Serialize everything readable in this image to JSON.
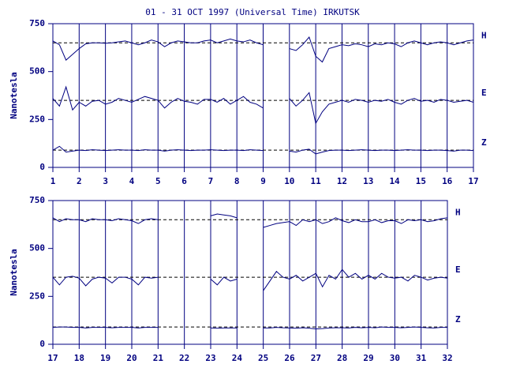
{
  "chart_data": [
    {
      "type": "line",
      "title": "01 - 31 OCT 1997 (Universal Time) IRKUTSK",
      "ylabel": "Nanotesla",
      "x": [
        1,
        1.25,
        1.5,
        1.75,
        2,
        2.25,
        2.5,
        2.75,
        3,
        3.25,
        3.5,
        3.75,
        4,
        4.25,
        4.5,
        4.75,
        5,
        5.25,
        5.5,
        5.75,
        6,
        6.25,
        6.5,
        6.75,
        7,
        7.25,
        7.5,
        7.75,
        8,
        8.25,
        8.5,
        8.75,
        9,
        9.25,
        9.5,
        9.75,
        10,
        10.25,
        10.5,
        10.75,
        11,
        11.25,
        11.5,
        11.75,
        12,
        12.25,
        12.5,
        12.75,
        13,
        13.25,
        13.5,
        13.75,
        14,
        14.25,
        14.5,
        14.75,
        15,
        15.25,
        15.5,
        15.75,
        16,
        16.25,
        16.5,
        16.75,
        17
      ],
      "xlim": [
        1,
        17
      ],
      "xticks": [
        1,
        2,
        3,
        4,
        5,
        6,
        7,
        8,
        9,
        10,
        11,
        12,
        13,
        14,
        15,
        16,
        17
      ],
      "ylim": [
        0,
        750
      ],
      "yticks": [
        0,
        250,
        500,
        750
      ],
      "grid": true,
      "series": [
        {
          "name": "H",
          "color": "#000080",
          "baseline": 650,
          "values": [
            660,
            640,
            560,
            590,
            620,
            645,
            650,
            650,
            648,
            650,
            655,
            660,
            650,
            640,
            650,
            665,
            655,
            630,
            650,
            660,
            655,
            650,
            650,
            660,
            665,
            650,
            660,
            670,
            660,
            655,
            665,
            650,
            640,
            null,
            null,
            null,
            620,
            610,
            640,
            680,
            580,
            550,
            620,
            630,
            640,
            635,
            645,
            640,
            630,
            645,
            640,
            650,
            645,
            630,
            650,
            660,
            650,
            640,
            650,
            655,
            650,
            640,
            650,
            660,
            665
          ]
        },
        {
          "name": "E",
          "color": "#000080",
          "baseline": 350,
          "values": [
            360,
            320,
            420,
            300,
            340,
            320,
            345,
            350,
            330,
            340,
            360,
            350,
            340,
            355,
            370,
            360,
            350,
            310,
            340,
            360,
            345,
            340,
            330,
            355,
            355,
            340,
            360,
            330,
            350,
            370,
            340,
            330,
            310,
            null,
            null,
            null,
            360,
            320,
            350,
            390,
            230,
            290,
            330,
            340,
            350,
            340,
            355,
            350,
            340,
            350,
            345,
            355,
            340,
            330,
            350,
            360,
            345,
            350,
            340,
            355,
            350,
            340,
            345,
            350,
            340
          ]
        },
        {
          "name": "Z",
          "color": "#000080",
          "baseline": 90,
          "values": [
            90,
            110,
            80,
            85,
            90,
            88,
            92,
            90,
            88,
            90,
            92,
            90,
            90,
            88,
            92,
            90,
            90,
            85,
            90,
            92,
            90,
            88,
            90,
            90,
            92,
            90,
            88,
            90,
            90,
            88,
            92,
            90,
            88,
            null,
            null,
            null,
            85,
            80,
            90,
            95,
            70,
            80,
            88,
            90,
            90,
            88,
            90,
            92,
            90,
            88,
            90,
            90,
            88,
            90,
            92,
            90,
            90,
            88,
            90,
            90,
            88,
            85,
            90,
            90,
            88
          ]
        }
      ]
    },
    {
      "type": "line",
      "ylabel": "Nanotesla",
      "x": [
        17,
        17.25,
        17.5,
        17.75,
        18,
        18.25,
        18.5,
        18.75,
        19,
        19.25,
        19.5,
        19.75,
        20,
        20.25,
        20.5,
        20.75,
        21,
        21.25,
        21.5,
        21.75,
        22,
        22.25,
        22.5,
        22.75,
        23,
        23.25,
        23.5,
        23.75,
        24,
        24.25,
        24.5,
        24.75,
        25,
        25.25,
        25.5,
        25.75,
        26,
        26.25,
        26.5,
        26.75,
        27,
        27.25,
        27.5,
        27.75,
        28,
        28.25,
        28.5,
        28.75,
        29,
        29.25,
        29.5,
        29.75,
        30,
        30.25,
        30.5,
        30.75,
        31,
        31.25,
        31.5,
        31.75,
        32
      ],
      "xlim": [
        17,
        32
      ],
      "xticks": [
        17,
        18,
        19,
        20,
        21,
        22,
        23,
        24,
        25,
        26,
        27,
        28,
        29,
        30,
        31,
        32
      ],
      "ylim": [
        0,
        750
      ],
      "yticks": [
        0,
        250,
        500,
        750
      ],
      "grid": true,
      "series": [
        {
          "name": "H",
          "color": "#000080",
          "baseline": 650,
          "values": [
            660,
            640,
            655,
            650,
            650,
            640,
            655,
            650,
            650,
            645,
            655,
            650,
            645,
            630,
            650,
            655,
            650,
            null,
            null,
            null,
            null,
            null,
            null,
            null,
            670,
            680,
            675,
            670,
            660,
            null,
            null,
            null,
            610,
            620,
            630,
            635,
            640,
            620,
            650,
            640,
            650,
            630,
            640,
            660,
            645,
            635,
            650,
            640,
            640,
            650,
            635,
            645,
            645,
            630,
            650,
            645,
            650,
            640,
            645,
            655,
            660
          ]
        },
        {
          "name": "E",
          "color": "#000080",
          "baseline": 350,
          "values": [
            350,
            310,
            350,
            355,
            345,
            305,
            340,
            350,
            345,
            320,
            350,
            350,
            340,
            310,
            350,
            345,
            350,
            null,
            null,
            null,
            null,
            null,
            null,
            null,
            340,
            310,
            350,
            330,
            340,
            null,
            null,
            null,
            280,
            330,
            380,
            350,
            340,
            360,
            330,
            350,
            370,
            300,
            360,
            340,
            390,
            350,
            370,
            340,
            360,
            340,
            370,
            350,
            345,
            350,
            330,
            360,
            350,
            335,
            345,
            350,
            345
          ]
        },
        {
          "name": "Z",
          "color": "#000080",
          "baseline": 90,
          "values": [
            88,
            90,
            90,
            88,
            88,
            85,
            88,
            88,
            88,
            86,
            88,
            88,
            88,
            85,
            88,
            88,
            88,
            null,
            null,
            null,
            null,
            null,
            null,
            null,
            85,
            84,
            85,
            85,
            85,
            null,
            null,
            null,
            85,
            85,
            88,
            86,
            85,
            84,
            86,
            84,
            80,
            82,
            85,
            86,
            86,
            85,
            88,
            86,
            88,
            86,
            90,
            88,
            88,
            86,
            88,
            90,
            88,
            86,
            85,
            88,
            88
          ]
        }
      ]
    }
  ]
}
